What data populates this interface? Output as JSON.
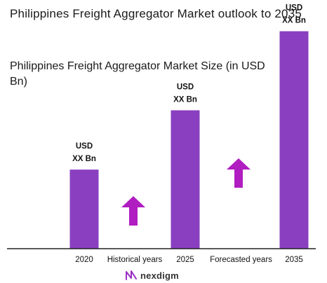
{
  "title": "Philippines Freight Aggregator Market outlook to 2035",
  "colors": {
    "bar": "#8a3fc0",
    "arrow": "#b01dc0",
    "axis": "#222222"
  },
  "chart_data": {
    "type": "bar",
    "title": "Philippines Freight Aggregator Market Size (in USD Bn)",
    "categories": [
      "2020",
      "2025",
      "2035"
    ],
    "values": [
      2.0,
      3.5,
      5.5
    ],
    "value_labels": [
      "USD\nXX Bn",
      "USD\nXX Bn",
      "USD\nXX Bn"
    ],
    "period_labels": [
      "Historical years",
      "Forecasted years"
    ],
    "ylim": [
      0,
      5.9
    ],
    "grid": false,
    "legend": "none"
  },
  "brand": {
    "name": "nexdigm",
    "logo_icon": "nexdigm-logo-icon"
  }
}
